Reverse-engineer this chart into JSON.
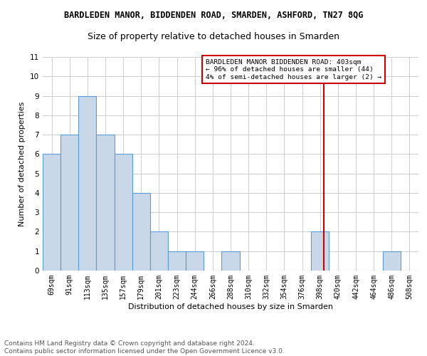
{
  "title": "BARDLEDEN MANOR, BIDDENDEN ROAD, SMARDEN, ASHFORD, TN27 8QG",
  "subtitle": "Size of property relative to detached houses in Smarden",
  "xlabel": "Distribution of detached houses by size in Smarden",
  "ylabel": "Number of detached properties",
  "categories": [
    "69sqm",
    "91sqm",
    "113sqm",
    "135sqm",
    "157sqm",
    "179sqm",
    "201sqm",
    "223sqm",
    "244sqm",
    "266sqm",
    "288sqm",
    "310sqm",
    "332sqm",
    "354sqm",
    "376sqm",
    "398sqm",
    "420sqm",
    "442sqm",
    "464sqm",
    "486sqm",
    "508sqm"
  ],
  "values": [
    6,
    7,
    9,
    7,
    6,
    4,
    2,
    1,
    1,
    0,
    1,
    0,
    0,
    0,
    0,
    2,
    0,
    0,
    0,
    1,
    0
  ],
  "bar_color": "#c8d8e8",
  "bar_edge_color": "#5b9bd5",
  "marker_label": "BARDLEDEN MANOR BIDDENDEN ROAD: 403sqm\n← 96% of detached houses are smaller (44)\n4% of semi-detached houses are larger (2) →",
  "marker_line_color": "#cc0000",
  "marker_box_color": "#cc0000",
  "ylim": [
    0,
    11
  ],
  "yticks": [
    0,
    1,
    2,
    3,
    4,
    5,
    6,
    7,
    8,
    9,
    10,
    11
  ],
  "footer": "Contains HM Land Registry data © Crown copyright and database right 2024.\nContains public sector information licensed under the Open Government Licence v3.0.",
  "grid_color": "#cccccc",
  "bg_color": "#ffffff",
  "title_fontsize": 8.5,
  "subtitle_fontsize": 9,
  "axis_label_fontsize": 8,
  "tick_fontsize": 7,
  "footer_fontsize": 6.5,
  "annotation_fontsize": 6.8
}
